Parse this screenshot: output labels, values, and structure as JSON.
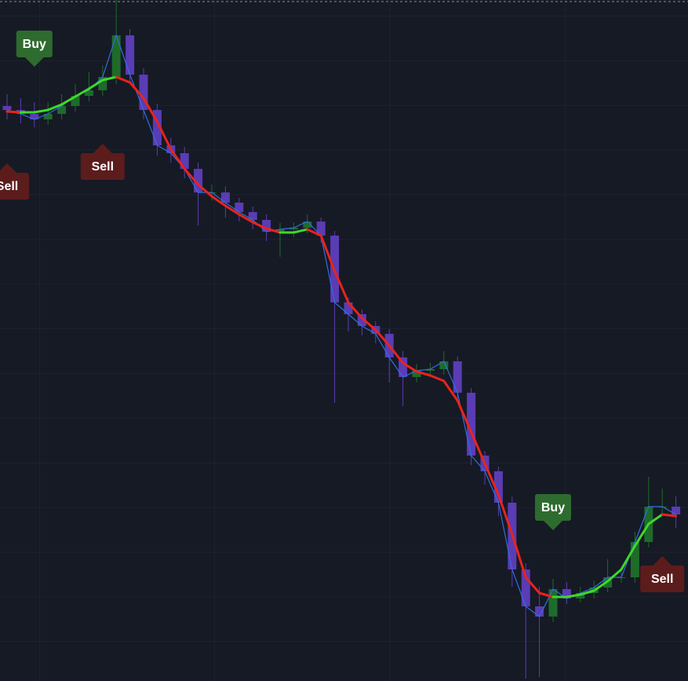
{
  "chart_data": {
    "type": "candlestick",
    "ylim": [
      0,
      86.7
    ],
    "up_color": "#1e6b2a",
    "down_color": "#5a3cb4",
    "open": [
      73.2,
      72.7,
      72.2,
      71.5,
      72.2,
      73.2,
      74.5,
      75.2,
      76.9,
      82.2,
      77.2,
      72.7,
      68.2,
      67.2,
      65.2,
      62.2,
      62.2,
      60.9,
      59.7,
      58.7,
      57.2,
      57.5,
      57.7,
      58.5,
      56.7,
      48.2,
      46.7,
      45.2,
      44.2,
      41.2,
      38.7,
      39.5,
      39.7,
      40.7,
      36.7,
      28.7,
      26.7,
      22.7,
      14.2,
      9.5,
      8.2,
      11.7,
      10.5,
      11.2,
      11.9,
      13.2,
      13.2,
      17.7,
      22.2,
      22.2
    ],
    "high": [
      74.7,
      74.2,
      73.7,
      73.7,
      74.7,
      76.0,
      77.5,
      78.4,
      86.7,
      83.0,
      78.0,
      73.5,
      69.2,
      68.0,
      66.0,
      63.2,
      63.0,
      61.5,
      60.4,
      59.4,
      58.3,
      58.4,
      59.4,
      59.0,
      57.3,
      48.8,
      47.3,
      45.8,
      44.8,
      42.0,
      40.4,
      40.5,
      42.0,
      41.3,
      37.3,
      29.3,
      27.3,
      23.5,
      15.0,
      12.0,
      13.0,
      12.6,
      12.0,
      12.8,
      15.5,
      14.5,
      19.0,
      26.0,
      24.5,
      23.5
    ],
    "low": [
      71.5,
      71.0,
      70.5,
      70.8,
      71.5,
      72.5,
      73.8,
      74.5,
      76.0,
      76.0,
      71.5,
      66.9,
      66.0,
      64.0,
      58.0,
      61.2,
      59.0,
      58.5,
      57.5,
      56.0,
      54.0,
      56.5,
      57.0,
      55.8,
      35.4,
      44.5,
      44.0,
      43.0,
      38.0,
      35.0,
      38.0,
      39.0,
      39.0,
      35.5,
      27.5,
      25.0,
      21.0,
      12.0,
      0.3,
      0.5,
      7.5,
      9.8,
      10.0,
      10.5,
      11.3,
      12.5,
      12.5,
      17.0,
      21.0,
      19.5
    ],
    "close": [
      72.7,
      72.2,
      71.5,
      72.2,
      73.2,
      74.5,
      75.2,
      76.9,
      82.2,
      77.2,
      72.7,
      68.2,
      67.2,
      65.2,
      62.2,
      62.2,
      60.9,
      59.7,
      58.7,
      57.2,
      57.5,
      57.7,
      58.5,
      56.7,
      48.2,
      46.7,
      45.2,
      44.2,
      41.2,
      38.7,
      39.5,
      39.7,
      40.7,
      36.7,
      28.7,
      26.7,
      22.7,
      14.2,
      9.5,
      8.2,
      11.7,
      10.5,
      11.2,
      11.9,
      13.2,
      13.2,
      17.7,
      22.2,
      22.2,
      21.2
    ],
    "close_line_color": "#2f6fe0",
    "ma": {
      "up_color": "#3fd82a",
      "down_color": "#e8231c",
      "values": [
        72.5,
        72.4,
        72.4,
        72.7,
        73.4,
        74.4,
        75.4,
        76.5,
        76.9,
        76.2,
        74.2,
        71.2,
        67.7,
        65.2,
        63.2,
        61.7,
        60.5,
        59.4,
        58.4,
        57.6,
        57.1,
        57.1,
        57.5,
        56.7,
        52.2,
        48.2,
        46.2,
        44.7,
        42.7,
        40.5,
        39.4,
        38.9,
        38.2,
        35.7,
        31.7,
        27.7,
        23.7,
        18.7,
        13.2,
        11.2,
        10.7,
        10.7,
        11.0,
        11.5,
        12.7,
        14.2,
        17.2,
        20.0,
        21.2,
        21.0
      ]
    },
    "signals": [
      {
        "text": "Buy",
        "index": 2,
        "value": 78.2,
        "color": "#2e6b2e"
      },
      {
        "text": "Sell",
        "index": 0,
        "value": 65.9,
        "color": "#5c1c1c"
      },
      {
        "text": "Sell",
        "index": 7,
        "value": 68.4,
        "color": "#5c1c1c"
      },
      {
        "text": "Buy",
        "index": 40,
        "value": 19.2,
        "color": "#2e6b2e"
      },
      {
        "text": "Sell",
        "index": 48,
        "value": 15.9,
        "color": "#5c1c1c"
      }
    ]
  }
}
